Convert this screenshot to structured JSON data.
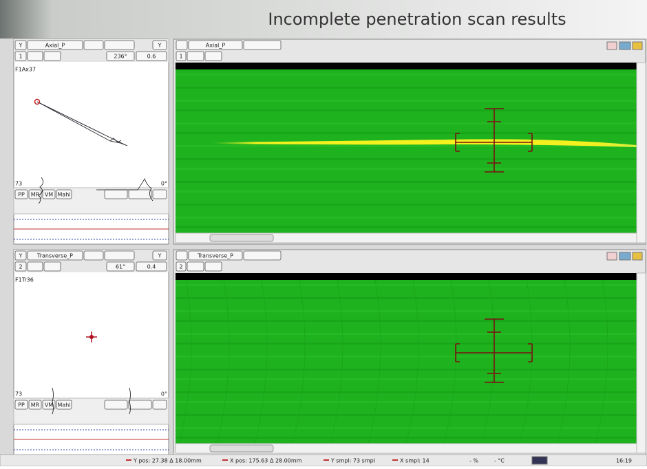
{
  "title": "Incomplete penetration scan results",
  "panels": [
    {
      "left": {
        "toolbar": [
          "Y",
          "Axial_P",
          "Y"
        ],
        "row2": [
          "1",
          "236°",
          "0.6"
        ],
        "label": "F1Ax37",
        "scale_left": "73",
        "scale_right": "0°",
        "buttons": [
          "PP",
          "MR",
          "VM",
          "Mahl"
        ]
      },
      "right": {
        "name": "Axial_P",
        "index": "1"
      }
    },
    {
      "left": {
        "toolbar": [
          "Y",
          "Transverse_P",
          "Y"
        ],
        "row2": [
          "2",
          "61°",
          "0.4"
        ],
        "label": "F1Tr36",
        "scale_left": "73",
        "scale_right": "0°",
        "buttons": [
          "PP",
          "MR",
          "VM",
          "Mahl"
        ]
      },
      "right": {
        "name": "Transverse_P",
        "index": "2"
      }
    }
  ],
  "status": {
    "items": [
      "Y pos: 27.38 Δ 18.00mm",
      "X pos: 175.63 Δ 28.00mm",
      "Y smpl: 73 smpl",
      "X smpl: 14",
      "- %",
      "- °C"
    ],
    "time": "16:19"
  }
}
